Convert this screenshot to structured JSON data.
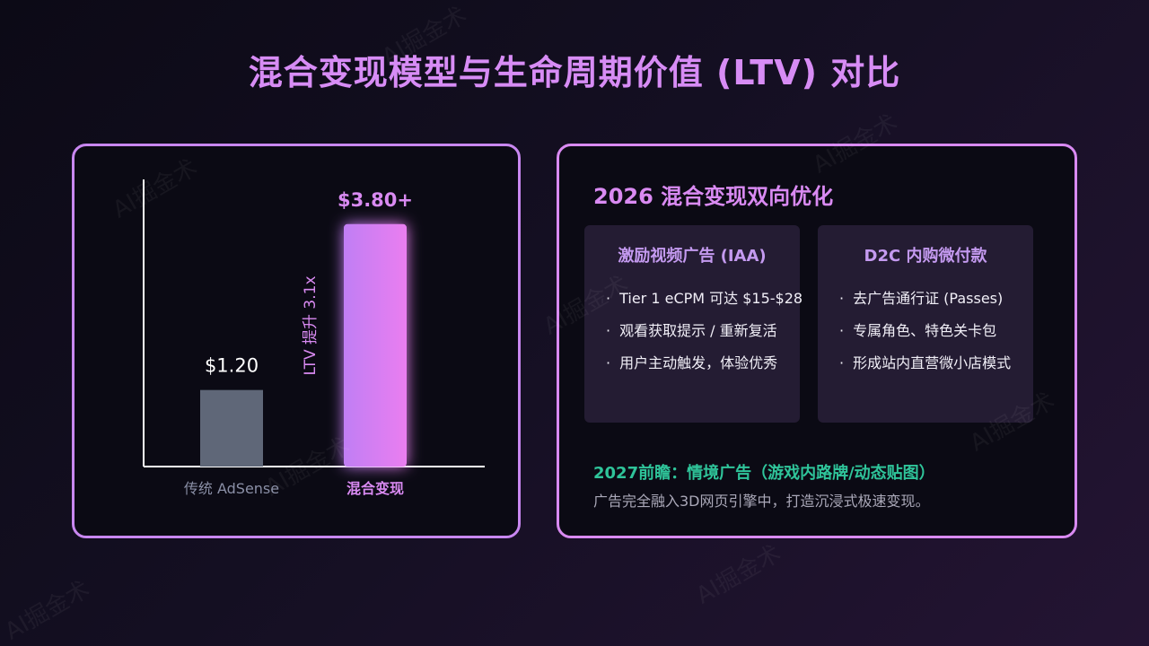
{
  "title": "混合变现模型与生命周期价值 (LTV) 对比",
  "watermark": "AI掘金术",
  "chart_data": {
    "type": "bar",
    "categories": [
      "传统 AdSense",
      "混合变现"
    ],
    "values": [
      1.2,
      3.8
    ],
    "value_labels": [
      "$1.20",
      "$3.80+"
    ],
    "annotation": "LTV 提升 3.1x",
    "colors": [
      "#5f6778",
      "#d58af5"
    ],
    "ylim": [
      0,
      4.5
    ]
  },
  "right_panel": {
    "title": "2026 混合变现双向优化",
    "cards": [
      {
        "title": "激励视频广告 (IAA)",
        "items": [
          "Tier 1 eCPM 可达 $15-$28",
          "观看获取提示 / 重新复活",
          "用户主动触发，体验优秀"
        ]
      },
      {
        "title": "D2C 内购微付款",
        "items": [
          "去广告通行证 (Passes)",
          "专属角色、特色关卡包",
          "形成站内直营微小店模式"
        ]
      }
    ],
    "future_title": "2027前瞻：情境广告（游戏内路牌/动态贴图）",
    "future_text": "广告完全融入3D网页引擎中，打造沉浸式极速变现。"
  }
}
